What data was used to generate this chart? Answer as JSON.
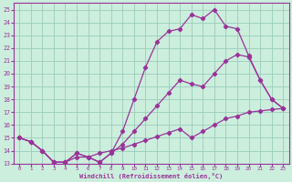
{
  "xlabel": "Windchill (Refroidissement éolien,°C)",
  "bg_color": "#cceedd",
  "line_color": "#993399",
  "grid_color": "#99ccbb",
  "xlim": [
    -0.5,
    23.5
  ],
  "ylim": [
    13,
    25.5
  ],
  "xticks": [
    0,
    1,
    2,
    3,
    4,
    5,
    6,
    7,
    8,
    9,
    10,
    11,
    12,
    13,
    14,
    15,
    16,
    17,
    18,
    19,
    20,
    21,
    22,
    23
  ],
  "yticks": [
    13,
    14,
    15,
    16,
    17,
    18,
    19,
    20,
    21,
    22,
    23,
    24,
    25
  ],
  "line1_x": [
    0,
    1,
    2,
    3,
    4,
    5,
    6,
    7,
    8,
    9,
    10,
    11,
    12,
    13,
    14,
    15,
    16,
    17,
    18,
    19,
    20,
    21,
    22,
    23
  ],
  "line1_y": [
    15,
    14.7,
    14,
    13.1,
    13.1,
    13.8,
    13.5,
    13.1,
    13.8,
    15.5,
    18.0,
    20.5,
    22.5,
    23.3,
    23.5,
    24.6,
    24.3,
    25.0,
    23.7,
    23.5,
    21.4,
    19.5,
    18.0,
    17.3
  ],
  "line2_x": [
    0,
    1,
    2,
    3,
    4,
    5,
    6,
    7,
    8,
    9,
    10,
    11,
    12,
    13,
    14,
    15,
    16,
    17,
    18,
    19,
    20,
    21,
    22,
    23
  ],
  "line2_y": [
    15,
    14.7,
    14,
    13.1,
    13.1,
    13.8,
    13.5,
    13.1,
    13.8,
    14.5,
    15.5,
    16.5,
    17.5,
    18.5,
    19.5,
    19.2,
    19.0,
    20.0,
    21.0,
    21.5,
    21.3,
    19.5,
    18.0,
    17.3
  ],
  "line3_x": [
    0,
    1,
    2,
    3,
    4,
    5,
    6,
    7,
    8,
    9,
    10,
    11,
    12,
    13,
    14,
    15,
    16,
    17,
    18,
    19,
    20,
    21,
    22,
    23
  ],
  "line3_y": [
    15,
    14.7,
    14,
    13.1,
    13.1,
    13.5,
    13.5,
    13.8,
    14.0,
    14.2,
    14.5,
    14.8,
    15.1,
    15.4,
    15.7,
    15.0,
    15.5,
    16.0,
    16.5,
    16.7,
    17.0,
    17.1,
    17.2,
    17.3
  ]
}
